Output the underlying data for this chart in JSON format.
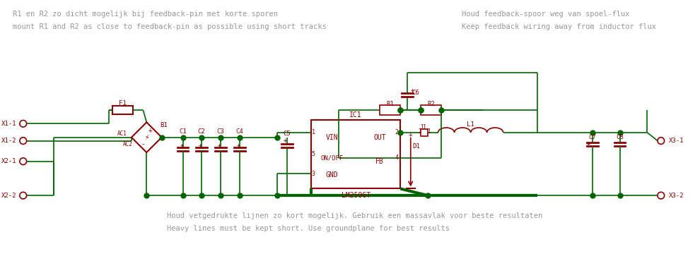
{
  "bg_color": "#ffffff",
  "wire_color": "#006400",
  "wire_color_thick": "#006400",
  "component_color": "#8b0000",
  "text_color_gray": "#999999",
  "text_color_dark": "#555555",
  "text_color_component": "#8b0000",
  "figsize": [
    9.9,
    3.7
  ],
  "dpi": 100,
  "annotations": {
    "top_left_line1": "R1 en R2 zo dicht mogelijk bij feedback-pin met korte sporen",
    "top_left_line2": "mount R1 and R2 as close to feedback-pin as possible using short tracks",
    "top_right_line1": "Houd feedback-spoor weg van spoel-flux",
    "top_right_line2": "Keep feedback wiring away from inductor flux",
    "bottom_line1": "Houd vetgedrukte lijnen zo kort mogelijk. Gebruik een massavlak voor beste resultaten",
    "bottom_line2": "Heavy lines must be kept short. Use groundplane for best results"
  }
}
